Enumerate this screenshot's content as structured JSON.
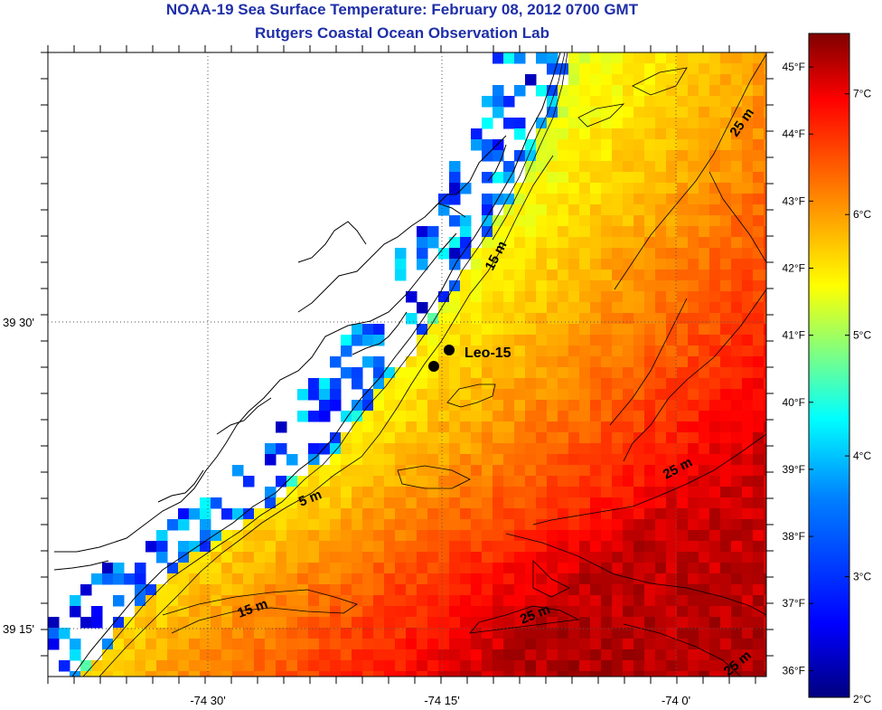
{
  "title": {
    "line1": "NOAA-19 Sea Surface Temperature:  February 08, 2012 0700 GMT",
    "line2": "Rutgers Coastal Ocean Observation Lab"
  },
  "axes": {
    "x_ticks": [
      {
        "label": "-74 30'",
        "lon": -74.5
      },
      {
        "label": "-74 15'",
        "lon": -74.25
      },
      {
        "label": "-74 0'",
        "lon": -74.0
      }
    ],
    "y_ticks": [
      {
        "label": "39 30'",
        "lat": 39.5
      },
      {
        "label": "39 15'",
        "lat": 39.25
      }
    ]
  },
  "contour_labels": [
    "5 m",
    "15 m",
    "15 m",
    "25 m",
    "25 m",
    "25 m",
    "25 m"
  ],
  "station": {
    "name": "Leo-15",
    "lon": -74.25,
    "lat": 39.46
  },
  "colorbar": {
    "celsius_labels": [
      "7°C",
      "6°C",
      "5°C",
      "4°C",
      "3°C",
      "2°C"
    ],
    "fahrenheit_labels": [
      "45°F",
      "44°F",
      "43°F",
      "42°F",
      "41°F",
      "40°F",
      "39°F",
      "38°F",
      "37°F",
      "36°F"
    ],
    "range_c": [
      2,
      7.5
    ],
    "colors": [
      "#00007f",
      "#0000ff",
      "#0080ff",
      "#00ffff",
      "#80ff80",
      "#ffff00",
      "#ff8000",
      "#ff0000",
      "#7f0000"
    ]
  },
  "legend": {
    "land_color": "#ffffff",
    "no_data_color": "#ffffff"
  }
}
